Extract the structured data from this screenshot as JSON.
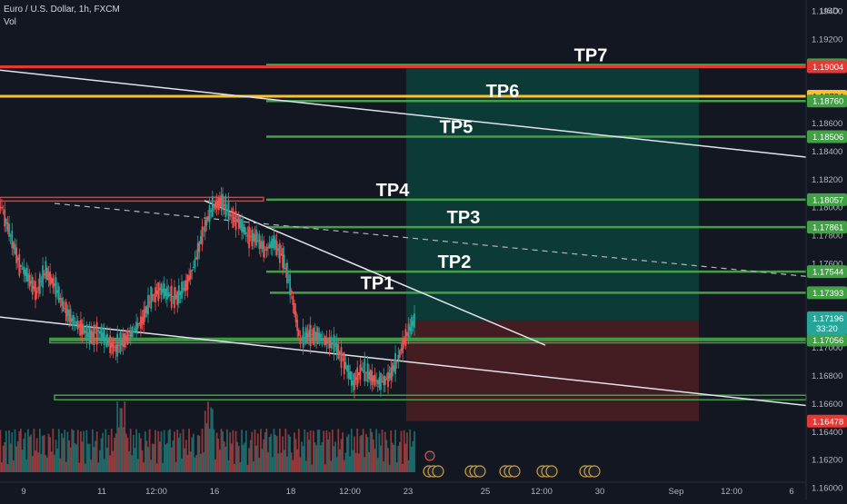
{
  "header": {
    "symbol": "Euro / U.S. Dollar, 1h, FXCM",
    "volume_label": "Vol"
  },
  "axis_currency": "USD",
  "colors": {
    "background": "#131722",
    "green_line": "#43a047",
    "red_line": "#e53935",
    "yellow_line": "#fbc02d",
    "up_candle": "#26a69a",
    "down_candle": "#ef5350",
    "target_zone": "#0c3f3a",
    "stop_zone": "#4a1e24",
    "axis_text": "#b2b5be"
  },
  "chart_data": {
    "type": "candlestick",
    "symbol": "EURUSD",
    "timeframe": "1h",
    "x_ticks": [
      "9",
      "11",
      "12:00",
      "16",
      "18",
      "12:00",
      "23",
      "25",
      "12:00",
      "30",
      "Sep",
      "12:00",
      "6"
    ],
    "y_ticks": [
      "1.19400",
      "1.19200",
      "1.19000",
      "1.18800",
      "1.18600",
      "1.18400",
      "1.18200",
      "1.18000",
      "1.17800",
      "1.17600",
      "1.17400",
      "1.17200",
      "1.17000",
      "1.16800",
      "1.16600",
      "1.16400",
      "1.16200",
      "1.16000"
    ],
    "y_range": [
      1.1592,
      1.1948
    ],
    "current_price": "1.17196",
    "countdown": "33:20",
    "price_labels": [
      {
        "value": 1.19018,
        "text": "1.19018",
        "kind": "green"
      },
      {
        "value": 1.19004,
        "text": "1.19004",
        "kind": "red"
      },
      {
        "value": 1.18794,
        "text": "1.18794",
        "kind": "yellow"
      },
      {
        "value": 1.1876,
        "text": "1.18760",
        "kind": "green"
      },
      {
        "value": 1.18506,
        "text": "1.18506",
        "kind": "green"
      },
      {
        "value": 1.18057,
        "text": "1.18057",
        "kind": "green"
      },
      {
        "value": 1.17861,
        "text": "1.17861",
        "kind": "green"
      },
      {
        "value": 1.17544,
        "text": "1.17544",
        "kind": "green"
      },
      {
        "value": 1.17393,
        "text": "1.17393",
        "kind": "green"
      },
      {
        "value": 1.17056,
        "text": "1.17056",
        "kind": "green"
      },
      {
        "value": 1.16478,
        "text": "1.16478",
        "kind": "red"
      }
    ],
    "targets": [
      {
        "label": "TP1",
        "value": 1.17393
      },
      {
        "label": "TP2",
        "value": 1.17544
      },
      {
        "label": "TP3",
        "value": 1.17861
      },
      {
        "label": "TP4",
        "value": 1.18057
      },
      {
        "label": "TP5",
        "value": 1.18506
      },
      {
        "label": "TP6",
        "value": 1.1876
      },
      {
        "label": "TP7",
        "value": 1.19018
      }
    ],
    "position": {
      "entry": 1.17196,
      "target": 1.19004,
      "stop": 1.16478
    },
    "close_series": [
      1.18,
      1.178,
      1.176,
      1.175,
      1.174,
      1.1755,
      1.1745,
      1.173,
      1.172,
      1.1715,
      1.1708,
      1.1712,
      1.1705,
      1.17,
      1.1706,
      1.1712,
      1.172,
      1.1735,
      1.1742,
      1.1738,
      1.1736,
      1.1745,
      1.176,
      1.1785,
      1.18,
      1.1805,
      1.1795,
      1.179,
      1.178,
      1.1778,
      1.177,
      1.1775,
      1.1765,
      1.174,
      1.1705,
      1.171,
      1.1708,
      1.1705,
      1.1702,
      1.169,
      1.1675,
      1.1685,
      1.168,
      1.1675,
      1.1678,
      1.169,
      1.1708,
      1.1719
    ]
  }
}
